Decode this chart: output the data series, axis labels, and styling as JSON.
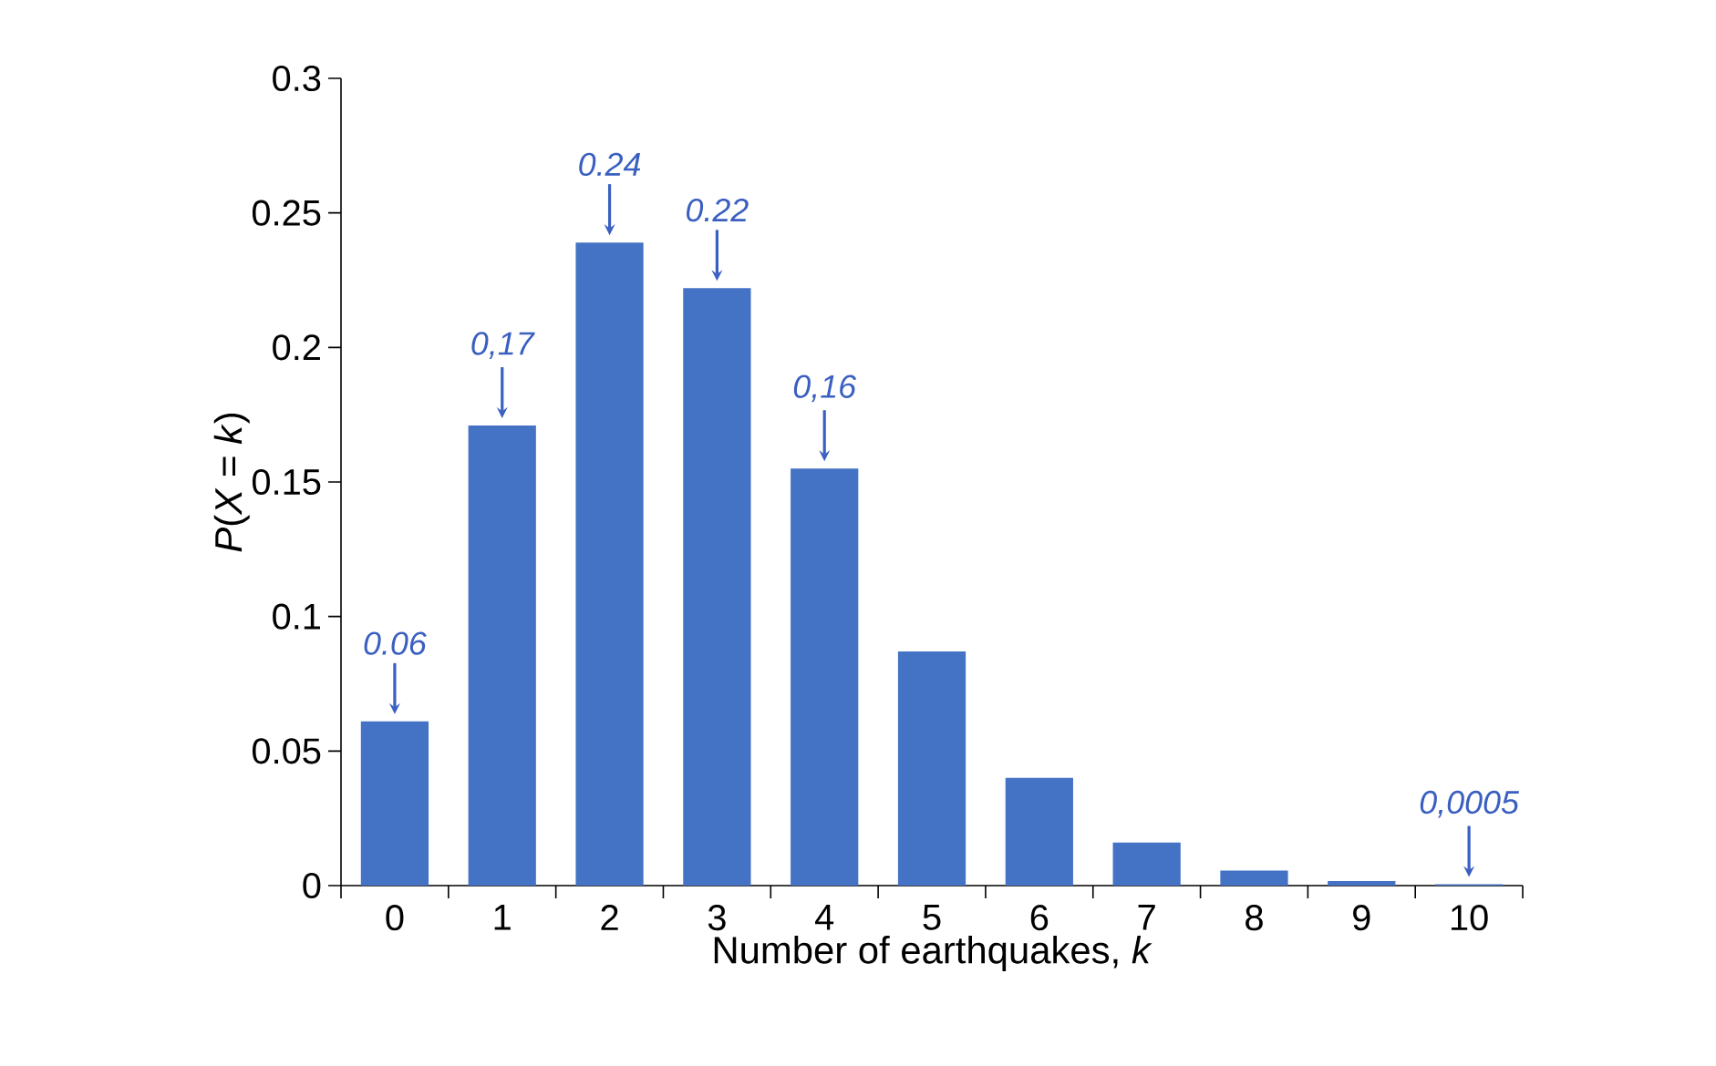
{
  "chart_data": {
    "type": "bar",
    "xlabel": "Number of earthquakes, *k*",
    "ylabel": "*P*(*X* = *k*)",
    "categories": [
      "0",
      "1",
      "2",
      "3",
      "4",
      "5",
      "6",
      "7",
      "8",
      "9",
      "10"
    ],
    "values": [
      0.061,
      0.171,
      0.239,
      0.222,
      0.155,
      0.087,
      0.04,
      0.016,
      0.0056,
      0.0017,
      0.0005
    ],
    "color": "#4472c4",
    "ylim": [
      0,
      0.3
    ],
    "yticks": [
      0,
      0.05,
      0.1,
      0.15,
      0.2,
      0.25,
      0.3
    ],
    "grid": false,
    "annotations": [
      {
        "text": "0.06",
        "x": "0",
        "y": 0.061
      },
      {
        "text": "0,17",
        "x": "1",
        "y": 0.171
      },
      {
        "text": "0.24",
        "x": "2",
        "y": 0.239
      },
      {
        "text": "0.22",
        "x": "3",
        "y": 0.222
      },
      {
        "text": "0,16",
        "x": "4",
        "y": 0.155
      },
      {
        "text": "0,0005",
        "x": "10",
        "y": 0.0005
      }
    ]
  }
}
